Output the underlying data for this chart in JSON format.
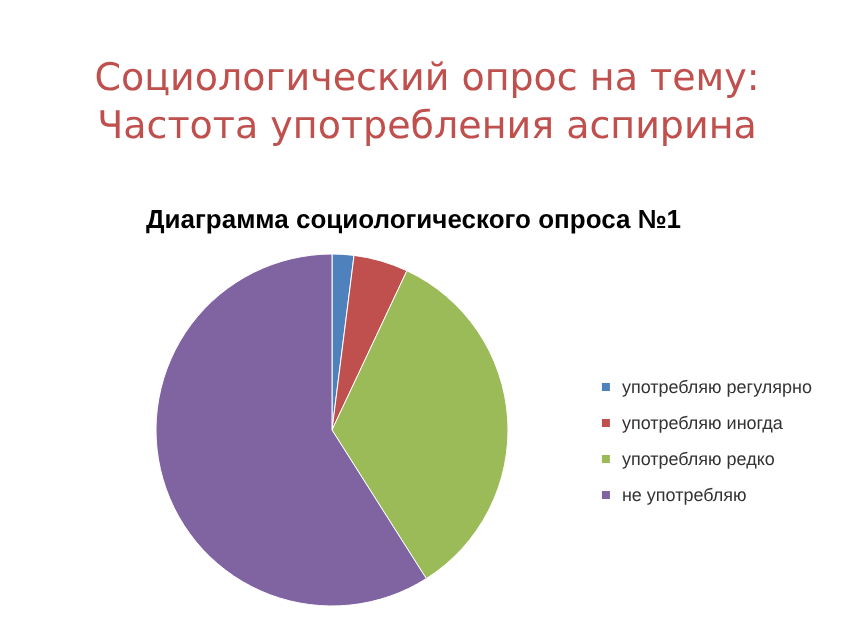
{
  "chart_data": {
    "type": "pie",
    "title": "Социологический опрос на тему:\nЧастота употребления аспирина",
    "subtitle": "Диаграмма социологического опроса №1",
    "categories": [
      "употребляю регулярно",
      "употребляю иногда",
      "употребляю редко",
      "не употребляю"
    ],
    "values": [
      2,
      5,
      34,
      59
    ],
    "colors": [
      "#4f81bd",
      "#c0504d",
      "#9bbb59",
      "#8064a2"
    ],
    "legend": "right"
  }
}
